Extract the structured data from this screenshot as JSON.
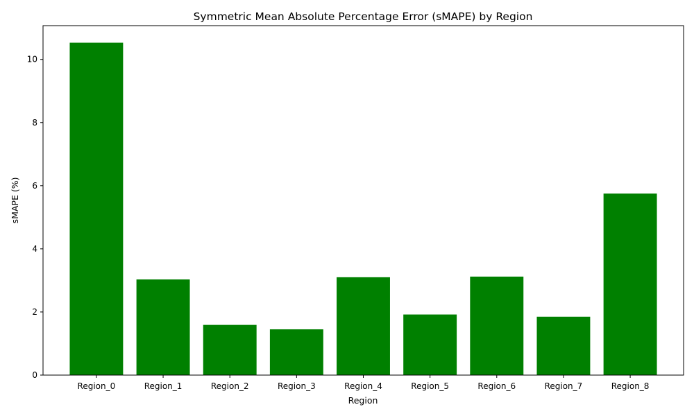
{
  "chart_data": {
    "type": "bar",
    "title": "Symmetric Mean Absolute Percentage Error (sMAPE) by Region",
    "xlabel": "Region",
    "ylabel": "sMAPE (%)",
    "categories": [
      "Region_0",
      "Region_1",
      "Region_2",
      "Region_3",
      "Region_4",
      "Region_5",
      "Region_6",
      "Region_7",
      "Region_8"
    ],
    "values": [
      10.53,
      3.03,
      1.59,
      1.45,
      3.1,
      1.92,
      3.12,
      1.85,
      5.75
    ],
    "ylim": [
      0,
      11.07
    ],
    "yticks": [
      0,
      2,
      4,
      6,
      8,
      10
    ],
    "bar_color": "#008000",
    "grid": false,
    "legend": "none"
  }
}
